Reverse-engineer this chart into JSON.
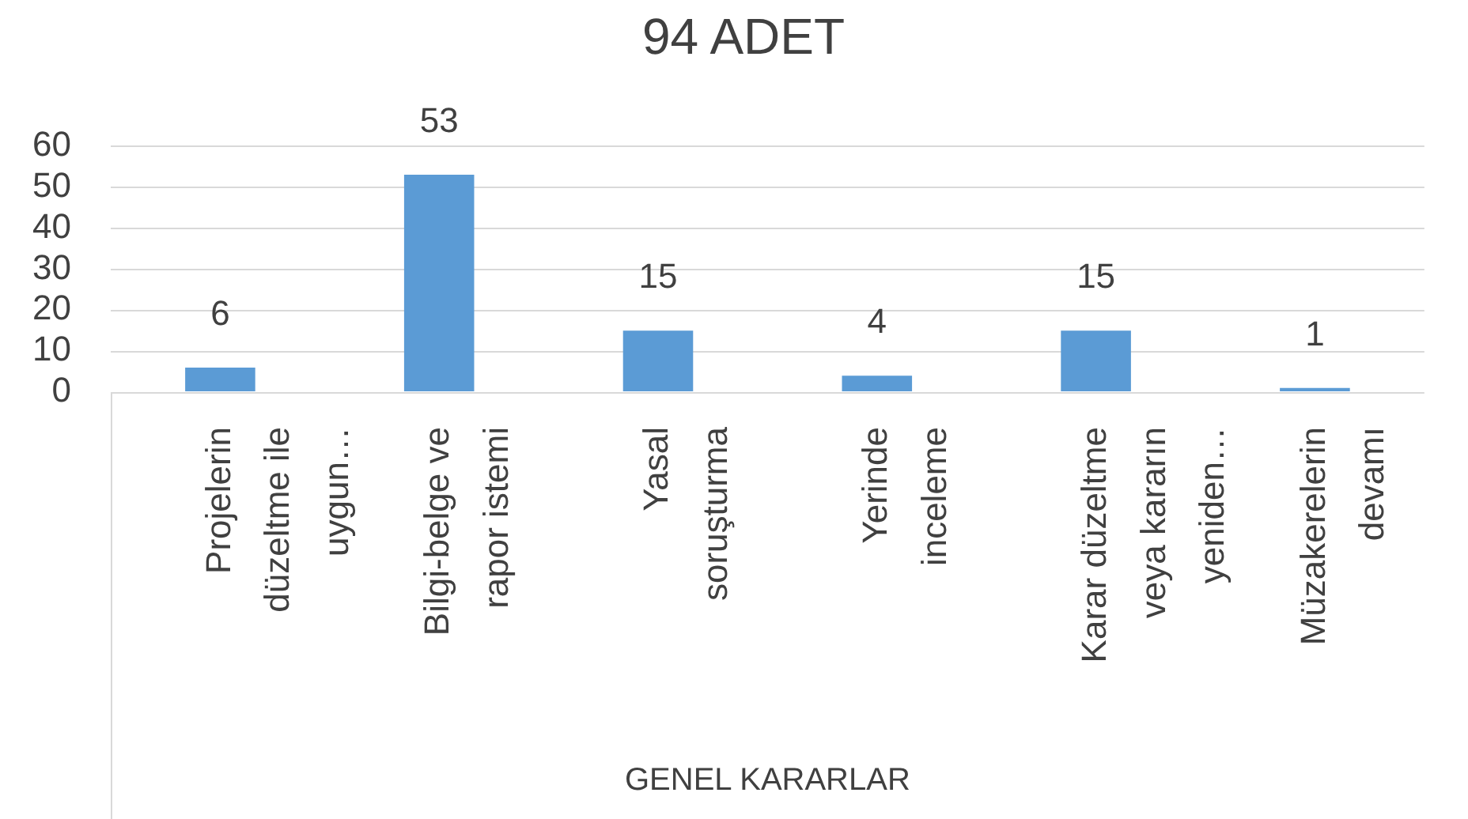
{
  "chart_data": {
    "type": "bar",
    "title": "94 ADET",
    "xlabel": "GENEL KARARLAR",
    "categories": [
      "Projelerin düzeltme ile uygun…",
      "Bilgi-belge ve rapor istemi",
      "Yasal soruşturma",
      "Yerinde inceleme",
      "Karar düzeltme veya kararın yeniden…",
      "Müzakerelerin devamı"
    ],
    "values": [
      6,
      53,
      15,
      4,
      15,
      1
    ],
    "color": "#5b9bd5",
    "ylim": [
      0,
      60
    ],
    "yticks": [
      0,
      10,
      20,
      30,
      40,
      50,
      60
    ],
    "grid": "y",
    "data_labels": true
  }
}
